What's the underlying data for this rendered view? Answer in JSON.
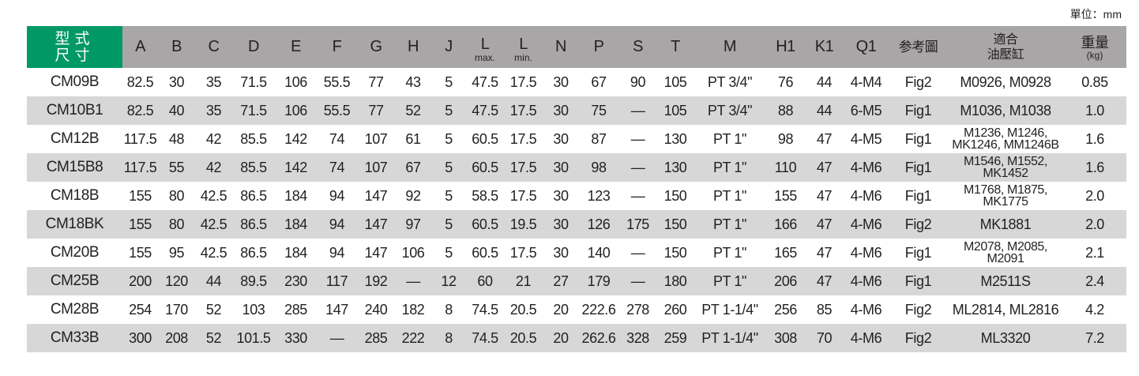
{
  "unit_label": "單位：mm",
  "header": {
    "model_line1": "型式",
    "model_line2": "尺寸",
    "columns": [
      "A",
      "B",
      "C",
      "D",
      "E",
      "F",
      "G",
      "H",
      "J"
    ],
    "l_max_main": "L",
    "l_max_sub": "max.",
    "l_min_main": "L",
    "l_min_sub": "min.",
    "columns2": [
      "N",
      "P",
      "S",
      "T",
      "M",
      "H1",
      "K1",
      "Q1"
    ],
    "reference": "参考圖",
    "cylinder_line1": "適合",
    "cylinder_line2": "油壓缸",
    "weight_main": "重量",
    "weight_sub": "(kg)"
  },
  "colors": {
    "header_green": "#009966",
    "header_gray": "#a8a6a6",
    "row_alt": "#d7d7d7"
  },
  "rows": [
    {
      "cells": [
        "CM09B",
        "82.5",
        "30",
        "35",
        "71.5",
        "106",
        "55.5",
        "77",
        "43",
        "5",
        "47.5",
        "17.5",
        "30",
        "67",
        "90",
        "105",
        "PT 3/4\"",
        "76",
        "44",
        "4-M4",
        "Fig2"
      ],
      "cyl": [
        "M0926, M0928"
      ],
      "weight": "0.85"
    },
    {
      "cells": [
        "CM10B1",
        "82.5",
        "40",
        "35",
        "71.5",
        "106",
        "55.5",
        "77",
        "52",
        "5",
        "47.5",
        "17.5",
        "30",
        "75",
        "—",
        "105",
        "PT 3/4\"",
        "88",
        "44",
        "6-M5",
        "Fig1"
      ],
      "cyl": [
        "M1036, M1038"
      ],
      "weight": "1.0"
    },
    {
      "cells": [
        "CM12B",
        "117.5",
        "48",
        "42",
        "85.5",
        "142",
        "74",
        "107",
        "61",
        "5",
        "60.5",
        "17.5",
        "30",
        "87",
        "—",
        "130",
        "PT 1\"",
        "98",
        "47",
        "4-M5",
        "Fig1"
      ],
      "cyl": [
        "M1236, M1246,",
        "MK1246, MM1246B"
      ],
      "weight": "1.6"
    },
    {
      "cells": [
        "CM15B8",
        "117.5",
        "55",
        "42",
        "85.5",
        "142",
        "74",
        "107",
        "67",
        "5",
        "60.5",
        "17.5",
        "30",
        "98",
        "—",
        "130",
        "PT 1\"",
        "110",
        "47",
        "4-M6",
        "Fig1"
      ],
      "cyl": [
        "M1546, M1552,",
        "MK1452"
      ],
      "weight": "1.6"
    },
    {
      "cells": [
        "CM18B",
        "155",
        "80",
        "42.5",
        "86.5",
        "184",
        "94",
        "147",
        "92",
        "5",
        "58.5",
        "17.5",
        "30",
        "123",
        "—",
        "150",
        "PT 1\"",
        "155",
        "47",
        "4-M6",
        "Fig1"
      ],
      "cyl": [
        "M1768, M1875,",
        "MK1775"
      ],
      "weight": "2.0"
    },
    {
      "cells": [
        "CM18BK",
        "155",
        "80",
        "42.5",
        "86.5",
        "184",
        "94",
        "147",
        "97",
        "5",
        "60.5",
        "19.5",
        "30",
        "126",
        "175",
        "150",
        "PT 1\"",
        "166",
        "47",
        "4-M6",
        "Fig2"
      ],
      "cyl": [
        "MK1881"
      ],
      "weight": "2.0"
    },
    {
      "cells": [
        "CM20B",
        "155",
        "95",
        "42.5",
        "86.5",
        "184",
        "94",
        "147",
        "106",
        "5",
        "60.5",
        "17.5",
        "30",
        "140",
        "—",
        "150",
        "PT 1\"",
        "165",
        "47",
        "4-M6",
        "Fig1"
      ],
      "cyl": [
        "M2078, M2085,",
        "M2091"
      ],
      "weight": "2.1"
    },
    {
      "cells": [
        "CM25B",
        "200",
        "120",
        "44",
        "89.5",
        "230",
        "117",
        "192",
        "—",
        "12",
        "60",
        "21",
        "27",
        "179",
        "—",
        "180",
        "PT 1\"",
        "206",
        "47",
        "4-M6",
        "Fig1"
      ],
      "cyl": [
        "M2511S"
      ],
      "weight": "2.4"
    },
    {
      "cells": [
        "CM28B",
        "254",
        "170",
        "52",
        "103",
        "285",
        "147",
        "240",
        "182",
        "8",
        "74.5",
        "20.5",
        "20",
        "222.6",
        "278",
        "260",
        "PT 1-1/4\"",
        "256",
        "85",
        "4-M6",
        "Fig2"
      ],
      "cyl": [
        "ML2814, ML2816"
      ],
      "weight": "4.2"
    },
    {
      "cells": [
        "CM33B",
        "300",
        "208",
        "52",
        "101.5",
        "330",
        "—",
        "285",
        "222",
        "8",
        "74.5",
        "20.5",
        "20",
        "262.6",
        "328",
        "259",
        "PT 1-1/4\"",
        "308",
        "70",
        "4-M6",
        "Fig2"
      ],
      "cyl": [
        "ML3320"
      ],
      "weight": "7.2"
    }
  ]
}
